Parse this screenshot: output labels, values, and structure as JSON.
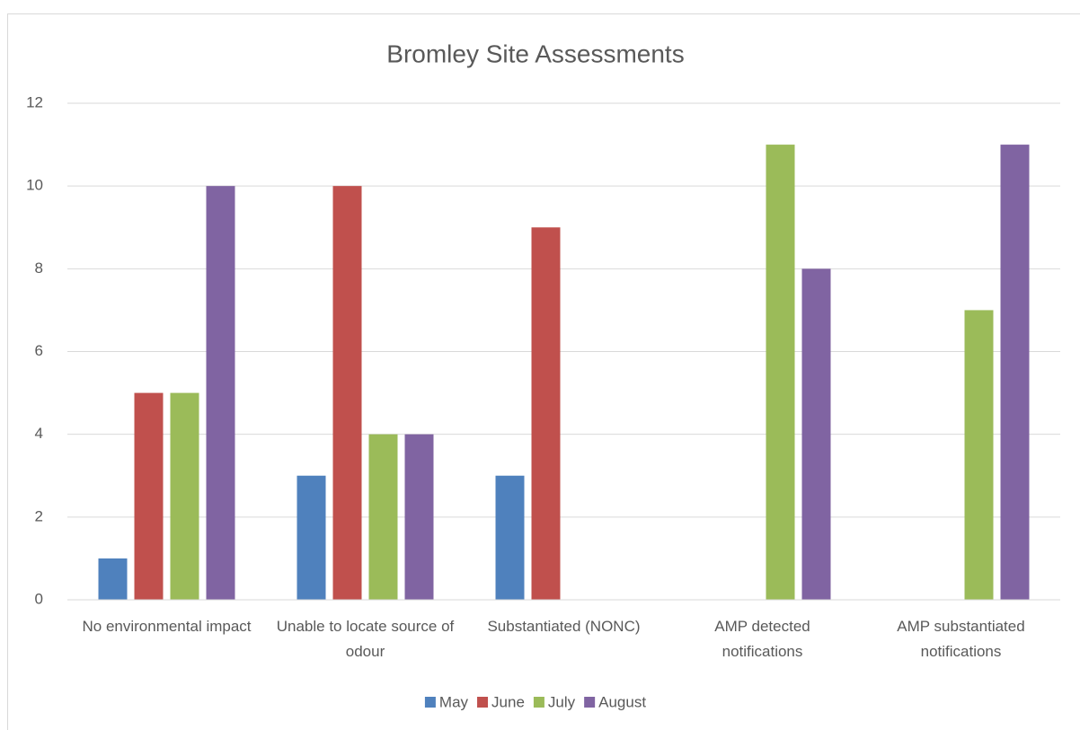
{
  "chart_data": {
    "type": "bar",
    "title": "Bromley Site Assessments",
    "categories": [
      "No environmental impact",
      "Unable to locate source of odour",
      "Substantiated (NONC)",
      "AMP detected notifications",
      "AMP substantiated notifications"
    ],
    "series": [
      {
        "name": "May",
        "color": "#4f81bd",
        "values": [
          1,
          3,
          3,
          0,
          0
        ]
      },
      {
        "name": "June",
        "color": "#c0504d",
        "values": [
          5,
          10,
          9,
          0,
          0
        ]
      },
      {
        "name": "July",
        "color": "#9bbb59",
        "values": [
          5,
          4,
          0,
          11,
          7
        ]
      },
      {
        "name": "August",
        "color": "#8064a2",
        "values": [
          10,
          4,
          0,
          8,
          11
        ]
      }
    ],
    "ylim": [
      0,
      12
    ],
    "yticks": [
      0,
      2,
      4,
      6,
      8,
      10,
      12
    ],
    "grid": true,
    "legend": "bottom"
  }
}
